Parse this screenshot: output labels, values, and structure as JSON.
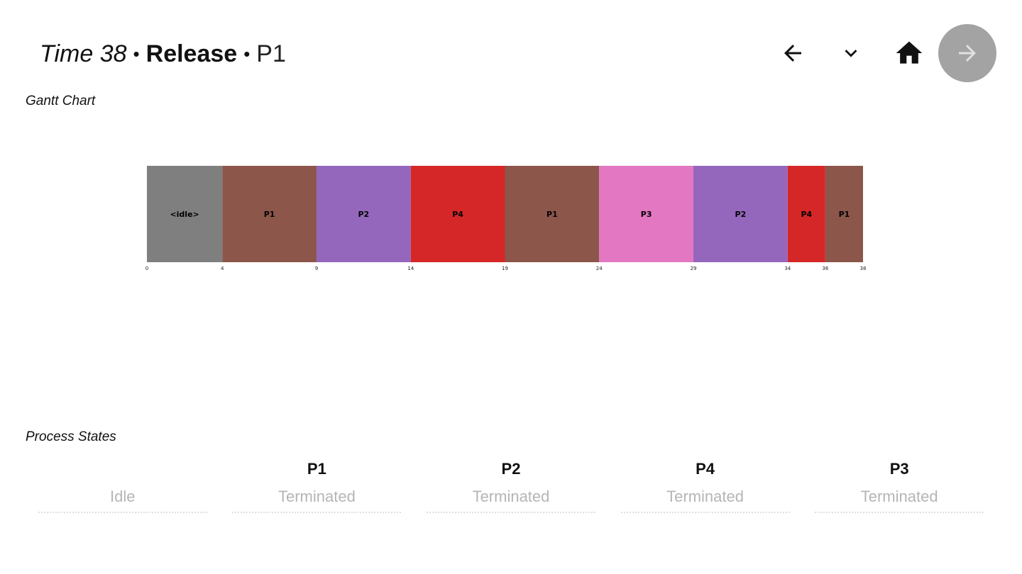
{
  "header": {
    "time": "Time 38",
    "separator": "•",
    "event": "Release",
    "process": "P1"
  },
  "toolbar": {
    "back_icon": "arrow-left-icon",
    "dropdown_icon": "chevron-down-icon",
    "home_icon": "home-icon",
    "next_icon": "arrow-right-icon",
    "next_bg_color": "#a3a3a3"
  },
  "sections": {
    "gantt_title": "Gantt Chart",
    "states_title": "Process States"
  },
  "chart_data": {
    "type": "gantt",
    "segments": [
      {
        "label": "<idle>",
        "start": 0,
        "end": 4,
        "color": "#7f7f7f"
      },
      {
        "label": "P1",
        "start": 4,
        "end": 9,
        "color": "#8c564b"
      },
      {
        "label": "P2",
        "start": 9,
        "end": 14,
        "color": "#9467bd"
      },
      {
        "label": "P4",
        "start": 14,
        "end": 19,
        "color": "#d62728"
      },
      {
        "label": "P1",
        "start": 19,
        "end": 24,
        "color": "#8c564b"
      },
      {
        "label": "P3",
        "start": 24,
        "end": 29,
        "color": "#e377c2"
      },
      {
        "label": "P2",
        "start": 29,
        "end": 34,
        "color": "#9467bd"
      },
      {
        "label": "P4",
        "start": 34,
        "end": 36,
        "color": "#d62728"
      },
      {
        "label": "P1",
        "start": 36,
        "end": 38,
        "color": "#8c564b"
      }
    ],
    "ticks": [
      "0",
      "4",
      "9",
      "14",
      "19",
      "24",
      "29",
      "34",
      "36",
      "38"
    ],
    "xlim": [
      0,
      38
    ]
  },
  "process_states": {
    "columns": [
      "",
      "P1",
      "P2",
      "P4",
      "P3"
    ],
    "values": [
      "Idle",
      "Terminated",
      "Terminated",
      "Terminated",
      "Terminated"
    ]
  }
}
